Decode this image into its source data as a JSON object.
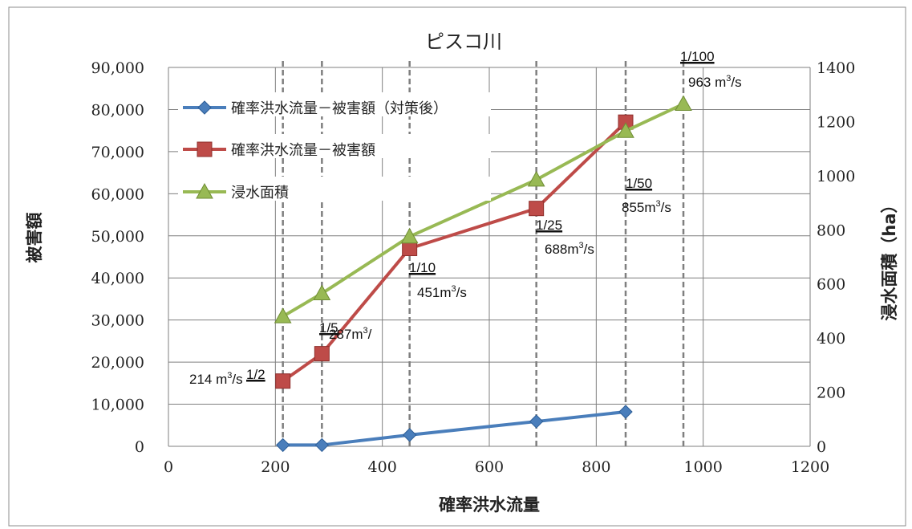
{
  "chart_data": {
    "type": "line",
    "title": "ピスコ川",
    "xlabel": "確率洪水流量",
    "ylabel": "被害額",
    "y2label": "浸水面積（ha）",
    "xlim": [
      0,
      1200
    ],
    "ylim": [
      0,
      90000
    ],
    "y2lim": [
      0,
      1400
    ],
    "x_ticks": [
      "0",
      "200",
      "400",
      "600",
      "800",
      "1000",
      "1200"
    ],
    "y_ticks": [
      "0",
      "10,000",
      "20,000",
      "30,000",
      "40,000",
      "50,000",
      "60,000",
      "70,000",
      "80,000",
      "90,000"
    ],
    "y2_ticks": [
      "0",
      "200",
      "400",
      "600",
      "800",
      "1000",
      "1200",
      "1400"
    ],
    "grid": true,
    "legend_position": "top-left",
    "series": [
      {
        "name": "確率洪水流量－被害額（対策後）",
        "axis": "left",
        "color": "#4a7ebb",
        "marker": "diamond",
        "x": [
          214,
          287,
          451,
          688,
          855
        ],
        "y": [
          300,
          300,
          2700,
          5900,
          8200
        ]
      },
      {
        "name": "確率洪水流量－被害額",
        "axis": "left",
        "color": "#be4b48",
        "marker": "square",
        "x": [
          214,
          287,
          451,
          688,
          855
        ],
        "y": [
          15500,
          22000,
          47000,
          56500,
          77000
        ]
      },
      {
        "name": "浸水面積",
        "axis": "right",
        "color": "#98b954",
        "marker": "triangle",
        "x": [
          214,
          287,
          451,
          688,
          855,
          963
        ],
        "y": [
          480,
          565,
          775,
          985,
          1165,
          1265
        ]
      }
    ],
    "annotations": [
      {
        "x": 214,
        "label": "1/2",
        "value": "214  m",
        "unit": "/s"
      },
      {
        "x": 287,
        "label": "1/5",
        "value": "287m",
        "unit": "/"
      },
      {
        "x": 451,
        "label": "1/10",
        "value": "451m",
        "unit": "/s"
      },
      {
        "x": 688,
        "label": "1/25",
        "value": "688m",
        "unit": "/s"
      },
      {
        "x": 855,
        "label": "1/50",
        "value": "855m",
        "unit": "/s"
      },
      {
        "x": 963,
        "label": "1/100",
        "value": "963 m",
        "unit": "/s"
      }
    ],
    "superscript": "3"
  }
}
